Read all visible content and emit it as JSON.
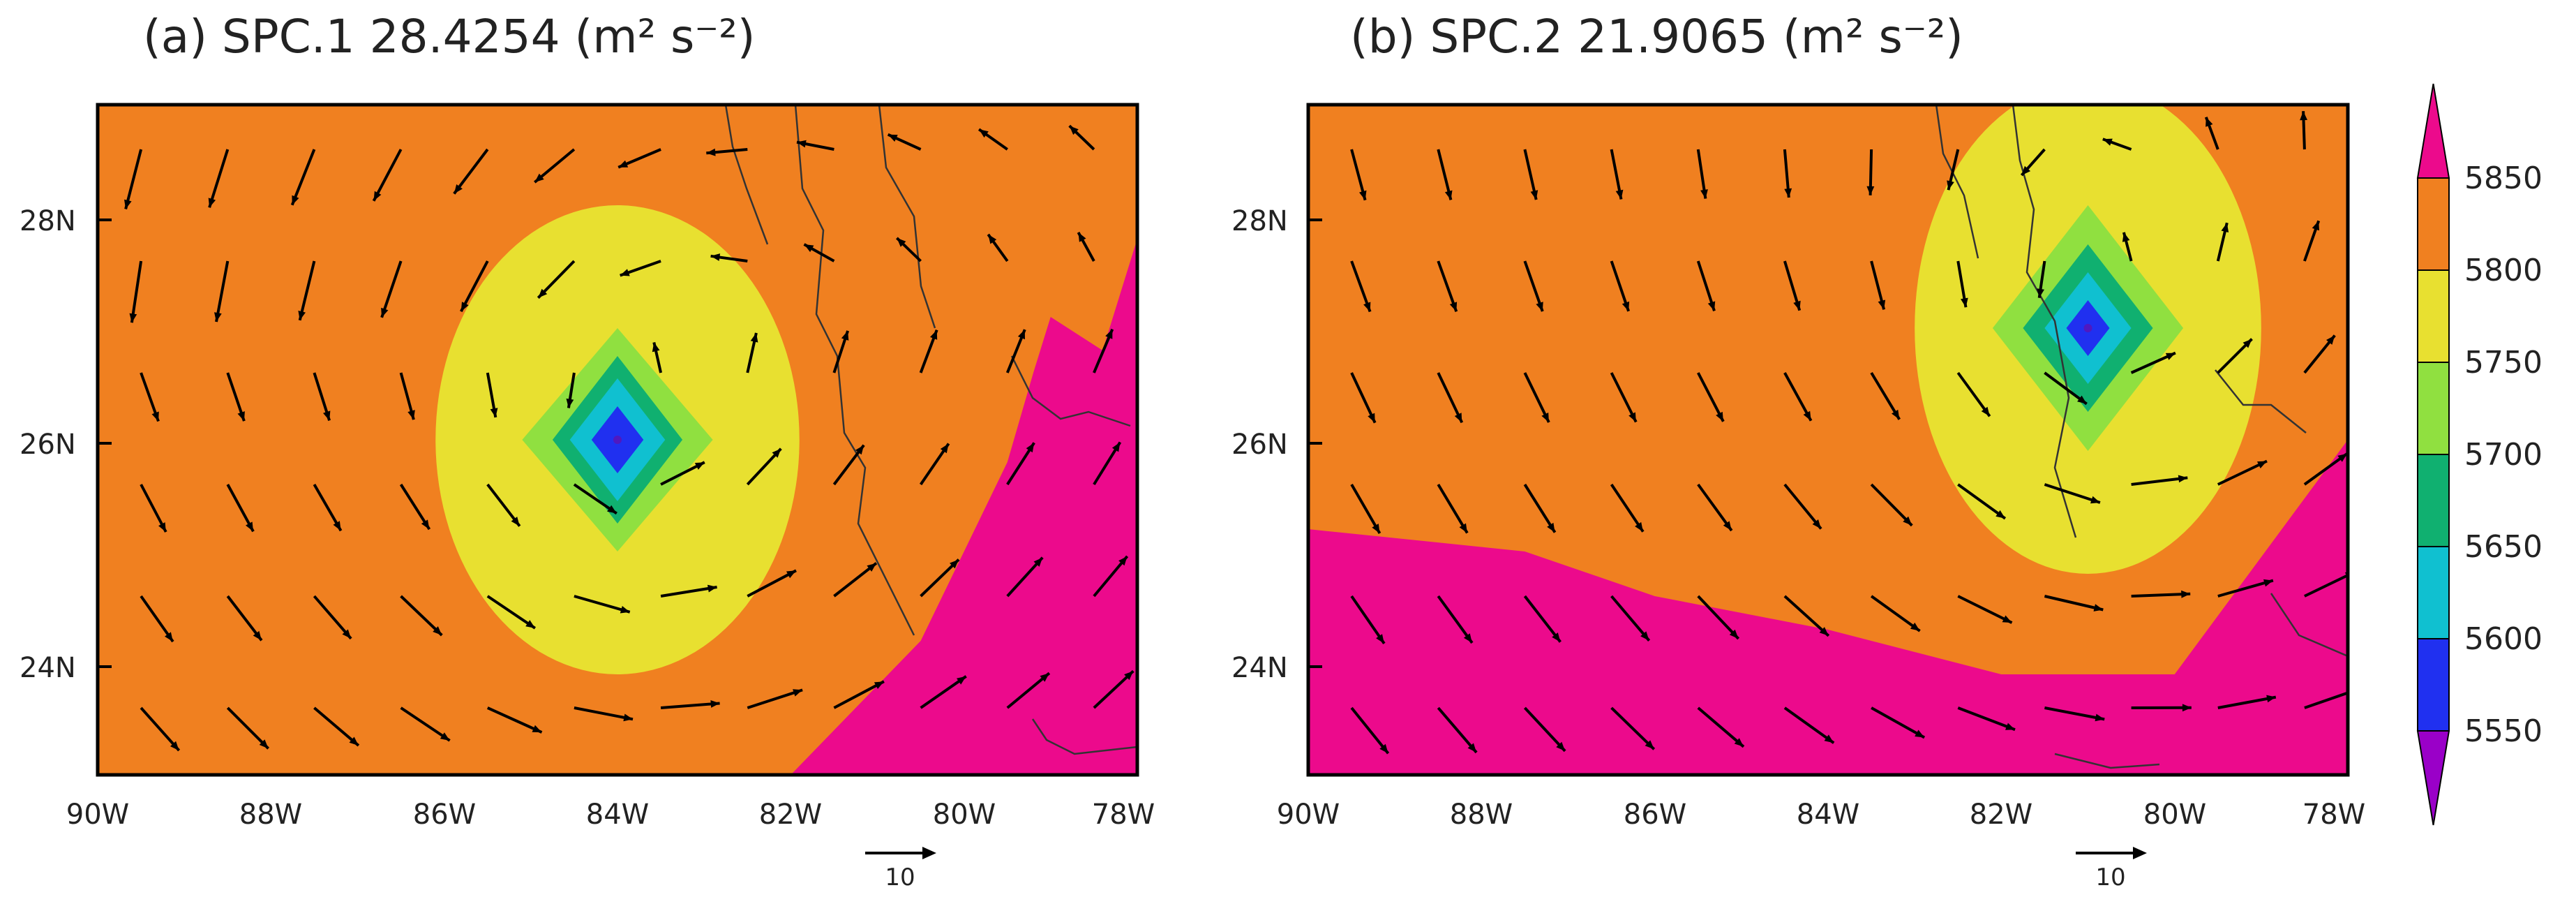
{
  "figure": {
    "colorbar": {
      "levels": [
        5550,
        5600,
        5650,
        5700,
        5750,
        5800,
        5850
      ],
      "labels": [
        "5550",
        "5600",
        "5650",
        "5700",
        "5750",
        "5800",
        "5850"
      ],
      "colors": [
        "#9a00c8",
        "#2030f0",
        "#10c0d0",
        "#10b070",
        "#90e040",
        "#e8e030",
        "#f08020",
        "#ec0a8c"
      ]
    },
    "vector_reference": {
      "label": "10",
      "magnitude": 10
    },
    "panels": [
      {
        "title": "(a) SPC.1 28.4254 (m² s⁻²)",
        "x_ticks": [
          "90W",
          "88W",
          "86W",
          "84W",
          "82W",
          "80W",
          "78W"
        ],
        "y_ticks": [
          "24N",
          "26N",
          "28N"
        ]
      },
      {
        "title": "(b) SPC.2 21.9065 (m² s⁻²)",
        "x_ticks": [
          "90W",
          "88W",
          "86W",
          "84W",
          "82W",
          "80W",
          "78W"
        ],
        "y_ticks": [
          "24N",
          "26N",
          "28N"
        ]
      }
    ]
  },
  "chart_data": [
    {
      "type": "heatmap",
      "panel": "a",
      "title": "(a) SPC.1 28.4254 (m² s⁻²)",
      "x_range_lon": [
        -90,
        -78
      ],
      "y_range_lat": [
        23,
        29
      ],
      "background_value": 5825,
      "low_center": {
        "lon": -84,
        "lat": 26,
        "value": 5575
      },
      "contours": [
        {
          "level": 5800,
          "rx_deg": 2.1,
          "ry_deg": 2.1
        },
        {
          "level": 5750,
          "rx_deg": 1.1,
          "ry_deg": 1.0
        },
        {
          "level": 5700,
          "rx_deg": 0.75,
          "ry_deg": 0.75
        },
        {
          "level": 5650,
          "rx_deg": 0.55,
          "ry_deg": 0.55
        },
        {
          "level": 5600,
          "rx_deg": 0.3,
          "ry_deg": 0.3
        }
      ],
      "high_region": [
        [
          -82,
          23
        ],
        [
          -80.5,
          24.2
        ],
        [
          -79.5,
          25.8
        ],
        [
          -79.2,
          26.6
        ],
        [
          -79,
          27.1
        ],
        [
          -78.4,
          26.8
        ],
        [
          -78,
          27.8
        ],
        [
          -78,
          23
        ]
      ]
    },
    {
      "type": "heatmap",
      "panel": "b",
      "title": "(b) SPC.2 21.9065 (m² s⁻²)",
      "x_range_lon": [
        -90,
        -78
      ],
      "y_range_lat": [
        23,
        29
      ],
      "background_value": 5825,
      "low_center": {
        "lon": -81,
        "lat": 27,
        "value": 5575
      },
      "contours": [
        {
          "level": 5800,
          "rx_deg": 2.0,
          "ry_deg": 2.2
        },
        {
          "level": 5750,
          "rx_deg": 1.1,
          "ry_deg": 1.1
        },
        {
          "level": 5700,
          "rx_deg": 0.75,
          "ry_deg": 0.75
        },
        {
          "level": 5650,
          "rx_deg": 0.5,
          "ry_deg": 0.5
        },
        {
          "level": 5600,
          "rx_deg": 0.25,
          "ry_deg": 0.25
        }
      ],
      "high_region": [
        [
          -90,
          25.2
        ],
        [
          -87.5,
          25.0
        ],
        [
          -86,
          24.6
        ],
        [
          -84,
          24.3
        ],
        [
          -82,
          23.9
        ],
        [
          -80,
          23.9
        ],
        [
          -78,
          26.0
        ],
        [
          -78,
          23
        ],
        [
          -90,
          23
        ]
      ]
    }
  ]
}
